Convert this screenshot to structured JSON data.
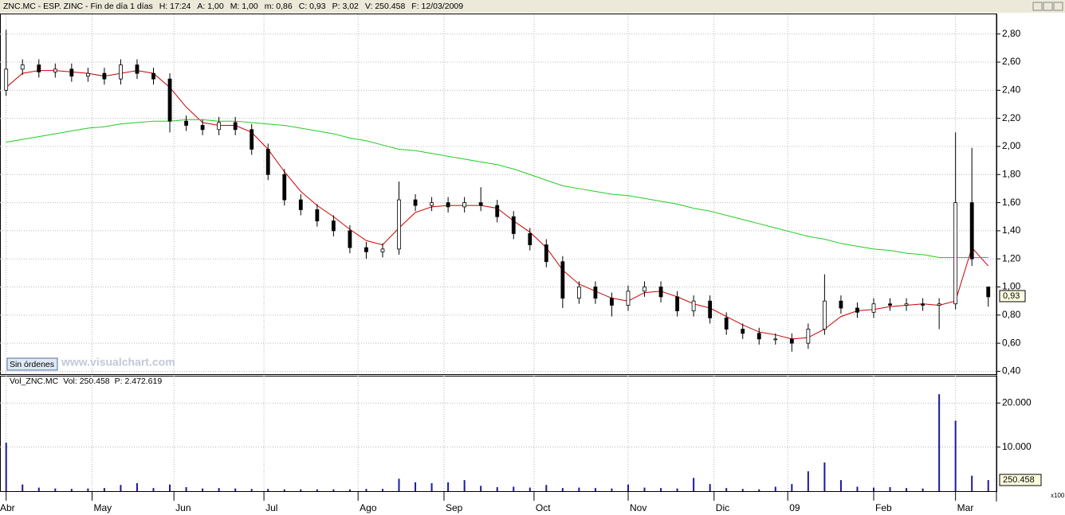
{
  "chart_data": {
    "type": "candlestick",
    "header": [
      "ZNC.MC - ESP. ZINC - Fin de día 1 días",
      "H: 17:24",
      "A: 1,00",
      "M: 1,00",
      "m: 0,86",
      "C: 0,93",
      "P: 3,02",
      "V: 250.458",
      "F: 12/03/2009"
    ],
    "volume_header": [
      "Vol_ZNC.MC",
      "Vol: 250.458",
      "P: 2.472.619"
    ],
    "button": "Sin órdenes",
    "watermark": "www.visualchart.com",
    "scale_note": "x100",
    "last_price_label": "0,93",
    "last_volume_label": "250.458",
    "x": [
      0,
      4,
      8,
      12,
      16,
      20,
      24,
      28,
      32,
      36,
      40,
      44,
      48,
      52,
      56,
      60,
      64,
      68,
      72,
      76,
      80,
      84,
      88,
      92,
      96,
      100,
      104,
      108,
      112,
      116,
      120,
      124,
      128,
      132,
      136,
      140,
      144,
      148,
      152,
      156,
      160,
      164,
      168,
      172,
      176,
      180,
      184,
      188,
      192,
      196,
      200,
      204,
      208,
      212,
      216,
      220,
      224,
      228,
      232,
      236,
      240
    ],
    "xlim": [
      -1.5,
      242
    ],
    "xticks": [
      {
        "value": 0,
        "label": "Abr"
      },
      {
        "value": 21,
        "label": "May"
      },
      {
        "value": 41,
        "label": "Jun"
      },
      {
        "value": 63,
        "label": "Jul"
      },
      {
        "value": 86,
        "label": "Ago"
      },
      {
        "value": 107,
        "label": "Sep"
      },
      {
        "value": 129,
        "label": "Oct"
      },
      {
        "value": 152,
        "label": "Nov"
      },
      {
        "value": 173,
        "label": "Dic"
      },
      {
        "value": 191,
        "label": "09"
      },
      {
        "value": 212,
        "label": "Feb"
      },
      {
        "value": 232,
        "label": "Mar"
      }
    ],
    "open": [
      2.4,
      2.55,
      2.58,
      2.53,
      2.55,
      2.5,
      2.52,
      2.48,
      2.58,
      2.52,
      2.48,
      2.18,
      2.15,
      2.12,
      2.17,
      2.12,
      1.98,
      1.8,
      1.62,
      1.55,
      1.47,
      1.4,
      1.28,
      1.25,
      1.27,
      1.62,
      1.58,
      1.6,
      1.57,
      1.6,
      1.58,
      1.5,
      1.38,
      1.3,
      1.18,
      0.92,
      1.0,
      0.92,
      0.87,
      0.97,
      1.0,
      0.93,
      0.83,
      0.9,
      0.78,
      0.7,
      0.67,
      0.63,
      0.63,
      0.6,
      0.7,
      0.9,
      0.85,
      0.82,
      0.88,
      0.87,
      0.88,
      0.87,
      0.88,
      1.6,
      1.0
    ],
    "high": [
      2.83,
      2.62,
      2.62,
      2.59,
      2.59,
      2.56,
      2.56,
      2.62,
      2.62,
      2.56,
      2.52,
      2.22,
      2.19,
      2.21,
      2.21,
      2.16,
      2.02,
      1.84,
      1.66,
      1.59,
      1.51,
      1.44,
      1.32,
      1.31,
      1.75,
      1.66,
      1.64,
      1.64,
      1.64,
      1.71,
      1.62,
      1.54,
      1.42,
      1.34,
      1.22,
      1.04,
      1.04,
      0.96,
      1.01,
      1.04,
      1.04,
      0.97,
      0.94,
      0.94,
      0.82,
      0.74,
      0.71,
      0.67,
      0.67,
      0.74,
      1.09,
      0.94,
      0.89,
      0.92,
      0.92,
      0.92,
      0.92,
      0.92,
      2.1,
      1.99,
      1.0
    ],
    "low": [
      2.36,
      2.51,
      2.49,
      2.49,
      2.46,
      2.46,
      2.44,
      2.44,
      2.48,
      2.44,
      2.1,
      2.11,
      2.08,
      2.08,
      2.08,
      1.94,
      1.76,
      1.58,
      1.51,
      1.43,
      1.36,
      1.24,
      1.2,
      1.21,
      1.23,
      1.54,
      1.54,
      1.53,
      1.53,
      1.54,
      1.46,
      1.34,
      1.26,
      1.14,
      0.85,
      0.88,
      0.88,
      0.79,
      0.83,
      0.93,
      0.89,
      0.79,
      0.79,
      0.74,
      0.66,
      0.63,
      0.59,
      0.59,
      0.54,
      0.56,
      0.66,
      0.81,
      0.78,
      0.78,
      0.83,
      0.83,
      0.83,
      0.7,
      0.84,
      1.15,
      0.86
    ],
    "close": [
      2.55,
      2.58,
      2.53,
      2.55,
      2.5,
      2.52,
      2.48,
      2.58,
      2.52,
      2.48,
      2.18,
      2.15,
      2.12,
      2.17,
      2.12,
      1.98,
      1.8,
      1.62,
      1.55,
      1.47,
      1.4,
      1.28,
      1.25,
      1.27,
      1.62,
      1.58,
      1.6,
      1.57,
      1.6,
      1.58,
      1.5,
      1.38,
      1.3,
      1.18,
      0.92,
      1.0,
      0.92,
      0.87,
      0.97,
      1.0,
      0.93,
      0.83,
      0.9,
      0.78,
      0.7,
      0.67,
      0.63,
      0.63,
      0.6,
      0.7,
      0.9,
      0.85,
      0.82,
      0.88,
      0.87,
      0.88,
      0.87,
      0.88,
      1.6,
      1.2,
      0.93
    ],
    "up_color": "#ffffff",
    "down_color": "#000000",
    "averages": [
      {
        "color": "#cc0000",
        "values": [
          2.42,
          2.52,
          2.54,
          2.54,
          2.53,
          2.52,
          2.5,
          2.52,
          2.54,
          2.52,
          2.42,
          2.28,
          2.17,
          2.15,
          2.15,
          2.1,
          1.98,
          1.82,
          1.68,
          1.58,
          1.5,
          1.41,
          1.33,
          1.3,
          1.42,
          1.53,
          1.57,
          1.58,
          1.58,
          1.58,
          1.56,
          1.47,
          1.39,
          1.28,
          1.12,
          1.02,
          0.97,
          0.92,
          0.9,
          0.96,
          0.97,
          0.93,
          0.88,
          0.85,
          0.79,
          0.73,
          0.68,
          0.66,
          0.63,
          0.64,
          0.7,
          0.79,
          0.83,
          0.84,
          0.86,
          0.87,
          0.88,
          0.87,
          0.9,
          1.28,
          1.15
        ]
      },
      {
        "color": "#22cc22",
        "values": [
          2.03,
          2.05,
          2.07,
          2.09,
          2.11,
          2.13,
          2.14,
          2.16,
          2.17,
          2.18,
          2.18,
          2.19,
          2.19,
          2.18,
          2.18,
          2.17,
          2.16,
          2.15,
          2.13,
          2.11,
          2.09,
          2.06,
          2.04,
          2.01,
          1.98,
          1.97,
          1.95,
          1.93,
          1.91,
          1.89,
          1.87,
          1.84,
          1.8,
          1.76,
          1.72,
          1.7,
          1.68,
          1.66,
          1.65,
          1.63,
          1.61,
          1.59,
          1.56,
          1.54,
          1.51,
          1.48,
          1.45,
          1.42,
          1.39,
          1.36,
          1.34,
          1.31,
          1.29,
          1.27,
          1.26,
          1.24,
          1.23,
          1.21,
          1.21,
          1.21,
          1.21
        ]
      }
    ],
    "ylim": [
      0.38,
      2.94
    ],
    "yticks": [
      {
        "value": 0.4,
        "label": "0,40"
      },
      {
        "value": 0.6,
        "label": "0,60"
      },
      {
        "value": 0.8,
        "label": "0,80"
      },
      {
        "value": 1.0,
        "label": "1,00"
      },
      {
        "value": 1.2,
        "label": "1,20"
      },
      {
        "value": 1.4,
        "label": "1,40"
      },
      {
        "value": 1.6,
        "label": "1,60"
      },
      {
        "value": 1.8,
        "label": "1,80"
      },
      {
        "value": 2.0,
        "label": "2,00"
      },
      {
        "value": 2.2,
        "label": "2,20"
      },
      {
        "value": 2.4,
        "label": "2,40"
      },
      {
        "value": 2.6,
        "label": "2,60"
      },
      {
        "value": 2.8,
        "label": "2,80"
      }
    ],
    "volume": {
      "color": "#1a1aa0",
      "values": [
        11000,
        1500,
        800,
        600,
        500,
        600,
        700,
        1400,
        1800,
        700,
        1500,
        900,
        600,
        700,
        600,
        500,
        500,
        400,
        400,
        400,
        400,
        400,
        500,
        500,
        2800,
        2000,
        1800,
        2000,
        2500,
        1200,
        900,
        1000,
        800,
        1400,
        700,
        800,
        700,
        600,
        1500,
        800,
        700,
        600,
        3000,
        1600,
        700,
        500,
        400,
        1000,
        1600,
        4500,
        6500,
        2500,
        1000,
        800,
        900,
        700,
        600,
        22000,
        16000,
        3500,
        2504.58
      ],
      "ylim": [
        0,
        26200
      ],
      "yticks": [
        {
          "value": 10000,
          "label": "10.000"
        },
        {
          "value": 20000,
          "label": "20.000"
        }
      ]
    },
    "grid": true
  }
}
